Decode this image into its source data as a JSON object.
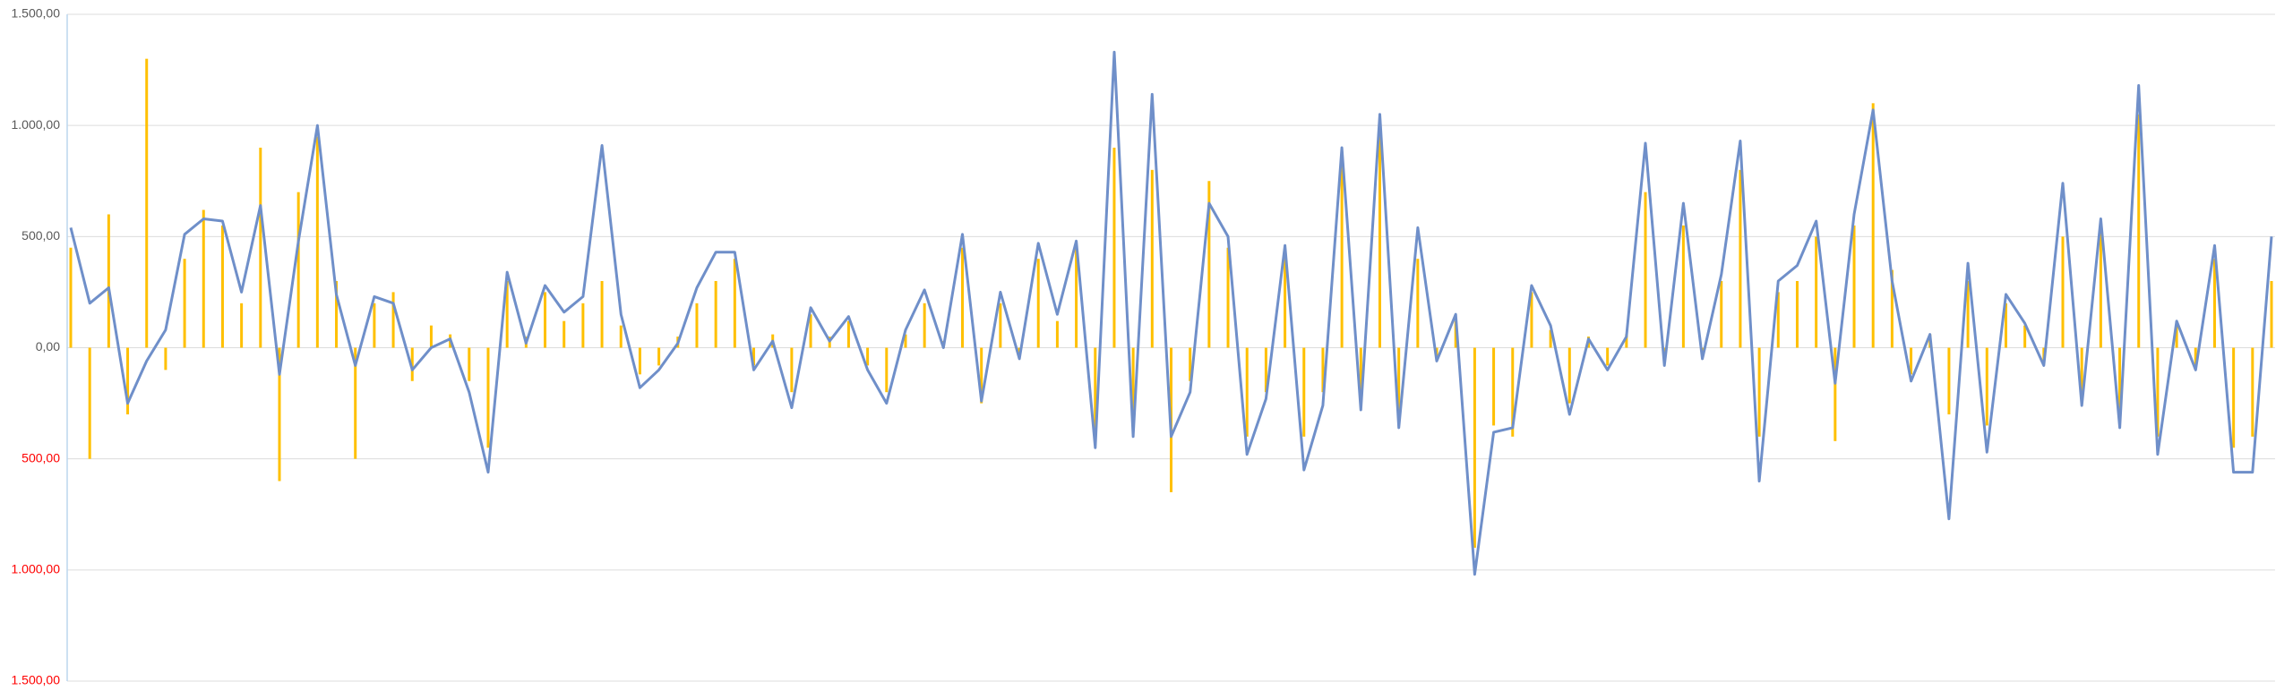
{
  "chart_data": {
    "type": "combo",
    "ylim": [
      -1500,
      1500
    ],
    "yticks": [
      {
        "value": 1500,
        "label": "1.500,00"
      },
      {
        "value": 1000,
        "label": "1.000,00"
      },
      {
        "value": 500,
        "label": "500,00"
      },
      {
        "value": 0,
        "label": "0,00"
      },
      {
        "value": -500,
        "label": "500,00"
      },
      {
        "value": -1000,
        "label": "1.000,00"
      },
      {
        "value": -1500,
        "label": "1.500,00"
      }
    ],
    "grid": true,
    "tick_color": "#595959",
    "negative_tick_color": "#ff0000",
    "series": [
      {
        "type": "bar",
        "color": "#ffc000",
        "values": [
          450,
          -500,
          600,
          -300,
          1300,
          -100,
          400,
          620,
          550,
          200,
          900,
          -600,
          700,
          950,
          300,
          -500,
          200,
          250,
          -150,
          100,
          60,
          -150,
          -450,
          300,
          50,
          250,
          120,
          200,
          300,
          100,
          -120,
          -80,
          50,
          200,
          300,
          400,
          -80,
          60,
          -200,
          150,
          50,
          120,
          -80,
          -200,
          60,
          200,
          30,
          450,
          -250,
          200,
          -40,
          400,
          120,
          450,
          -420,
          900,
          -300,
          800,
          -650,
          -150,
          750,
          450,
          -400,
          -200,
          400,
          -400,
          -200,
          850,
          -250,
          950,
          -300,
          400,
          -40,
          120,
          -900,
          -350,
          -400,
          250,
          80,
          -250,
          50,
          -80,
          60,
          700,
          -60,
          550,
          -40,
          300,
          800,
          -400,
          250,
          300,
          500,
          -420,
          550,
          1100,
          350,
          -120,
          60,
          -300,
          300,
          -350,
          200,
          100,
          -60,
          500,
          -200,
          550,
          -300,
          1050,
          -400,
          100,
          -80,
          400,
          -450,
          -400,
          300
        ]
      },
      {
        "type": "line",
        "color": "#6f8fc9",
        "values": [
          540,
          200,
          270,
          -250,
          -60,
          80,
          510,
          580,
          570,
          250,
          640,
          -120,
          480,
          1000,
          240,
          -80,
          230,
          200,
          -100,
          0,
          40,
          -200,
          -560,
          340,
          20,
          280,
          160,
          230,
          910,
          150,
          -180,
          -100,
          20,
          270,
          430,
          430,
          -100,
          30,
          -270,
          180,
          30,
          140,
          -100,
          -250,
          80,
          260,
          0,
          510,
          -240,
          250,
          -50,
          470,
          150,
          480,
          -450,
          1330,
          -400,
          1140,
          -400,
          -200,
          650,
          500,
          -480,
          -230,
          460,
          -550,
          -260,
          900,
          -280,
          1050,
          -360,
          540,
          -60,
          150,
          -1020,
          -380,
          -360,
          280,
          100,
          -300,
          40,
          -100,
          50,
          920,
          -80,
          650,
          -50,
          330,
          930,
          -600,
          300,
          370,
          570,
          -160,
          600,
          1070,
          300,
          -150,
          60,
          -770,
          380,
          -470,
          240,
          110,
          -80,
          740,
          -260,
          580,
          -360,
          1180,
          -480,
          120,
          -100,
          460,
          -560,
          -560,
          500
        ]
      }
    ]
  }
}
